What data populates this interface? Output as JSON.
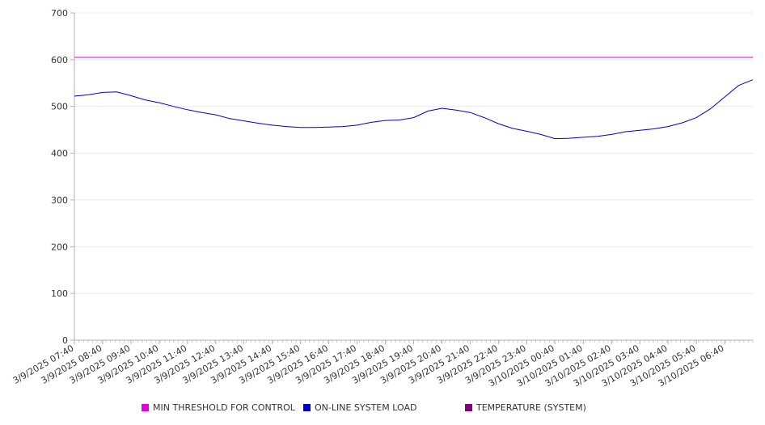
{
  "chart_data": {
    "type": "line",
    "title": "",
    "xlabel": "",
    "ylabel": "",
    "ylim": [
      0,
      700
    ],
    "yticks": [
      0,
      100,
      200,
      300,
      400,
      500,
      600,
      700
    ],
    "grid": true,
    "legend_position": "bottom",
    "x_tick_labels": [
      "3/9/2025 07:40",
      "3/9/2025 08:40",
      "3/9/2025 09:40",
      "3/9/2025 10:40",
      "3/9/2025 11:40",
      "3/9/2025 12:40",
      "3/9/2025 13:40",
      "3/9/2025 14:40",
      "3/9/2025 15:40",
      "3/9/2025 16:40",
      "3/9/2025 17:40",
      "3/9/2025 18:40",
      "3/9/2025 19:40",
      "3/9/2025 20:40",
      "3/9/2025 21:40",
      "3/9/2025 22:40",
      "3/9/2025 23:40",
      "3/10/2025 00:40",
      "3/10/2025 01:40",
      "3/10/2025 02:40",
      "3/10/2025 03:40",
      "3/10/2025 04:40",
      "3/10/2025 05:40",
      "3/10/2025 06:40"
    ],
    "x": [
      "3/9/2025 07:40",
      "3/9/2025 08:10",
      "3/9/2025 08:40",
      "3/9/2025 09:10",
      "3/9/2025 09:40",
      "3/9/2025 10:10",
      "3/9/2025 10:40",
      "3/9/2025 11:10",
      "3/9/2025 11:40",
      "3/9/2025 12:10",
      "3/9/2025 12:40",
      "3/9/2025 13:10",
      "3/9/2025 13:40",
      "3/9/2025 14:10",
      "3/9/2025 14:40",
      "3/9/2025 15:10",
      "3/9/2025 15:40",
      "3/9/2025 16:10",
      "3/9/2025 16:40",
      "3/9/2025 17:10",
      "3/9/2025 17:40",
      "3/9/2025 18:10",
      "3/9/2025 18:40",
      "3/9/2025 19:10",
      "3/9/2025 19:40",
      "3/9/2025 20:10",
      "3/9/2025 20:40",
      "3/9/2025 21:10",
      "3/9/2025 21:40",
      "3/9/2025 22:10",
      "3/9/2025 22:40",
      "3/9/2025 23:10",
      "3/9/2025 23:40",
      "3/10/2025 00:10",
      "3/10/2025 00:40",
      "3/10/2025 01:10",
      "3/10/2025 01:40",
      "3/10/2025 02:10",
      "3/10/2025 02:40",
      "3/10/2025 03:10",
      "3/10/2025 03:40",
      "3/10/2025 04:10",
      "3/10/2025 04:40",
      "3/10/2025 05:10",
      "3/10/2025 05:40",
      "3/10/2025 06:10",
      "3/10/2025 06:40",
      "3/10/2025 07:10",
      "3/10/2025 07:40"
    ],
    "series": [
      {
        "name": "MIN THRESHOLD FOR CONTROL",
        "color": "#e000e0",
        "values": [
          605,
          605,
          605,
          605,
          605,
          605,
          605,
          605,
          605,
          605,
          605,
          605,
          605,
          605,
          605,
          605,
          605,
          605,
          605,
          605,
          605,
          605,
          605,
          605,
          605,
          605,
          605,
          605,
          605,
          605,
          605,
          605,
          605,
          605,
          605,
          605,
          605,
          605,
          605,
          605,
          605,
          605,
          605,
          605,
          605,
          605,
          605,
          605,
          605
        ]
      },
      {
        "name": "ON-LINE SYSTEM LOAD",
        "color": "#0000cc",
        "values": [
          522,
          525,
          530,
          531,
          523,
          514,
          508,
          500,
          493,
          487,
          482,
          474,
          469,
          464,
          460,
          457,
          455,
          455,
          456,
          457,
          460,
          466,
          470,
          471,
          476,
          490,
          496,
          492,
          487,
          476,
          463,
          453,
          447,
          440,
          431,
          432,
          434,
          436,
          440,
          446,
          449,
          452,
          457,
          465,
          476,
          495,
          520,
          545,
          557
        ]
      }
    ]
  },
  "legend": {
    "items": [
      {
        "label": "MIN THRESHOLD FOR CONTROL",
        "color": "#e000e0"
      },
      {
        "label": "ON-LINE SYSTEM LOAD",
        "color": "#0000cc"
      },
      {
        "label": "TEMPERATURE (SYSTEM)",
        "color": "#800080"
      }
    ]
  }
}
